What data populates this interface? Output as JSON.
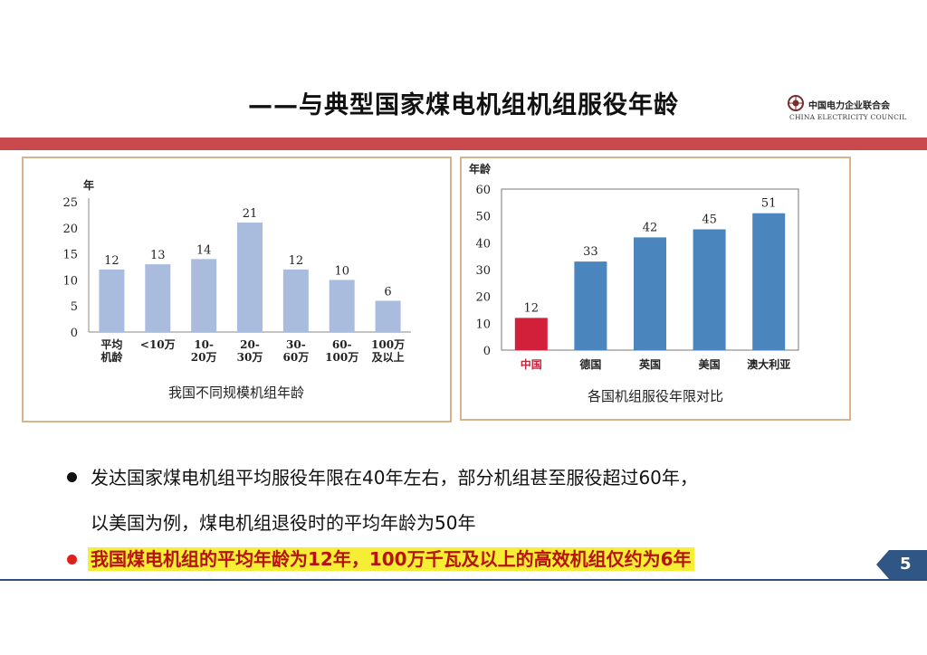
{
  "header": {
    "title": "——与典型国家煤电机组机组服役年龄",
    "logo_cn": "中国电力企业联合会",
    "logo_en": "CHINA ELECTRICITY COUNCIL"
  },
  "chart_data": [
    {
      "type": "bar",
      "title": "我国不同规模机组年龄",
      "ylabel": "年",
      "ylim": [
        0,
        25
      ],
      "yticks": [
        0,
        5,
        10,
        15,
        20,
        25
      ],
      "categories": [
        [
          "平均",
          "机龄"
        ],
        [
          "<10万"
        ],
        [
          "10-",
          "20万"
        ],
        [
          "20-",
          "30万"
        ],
        [
          "30-",
          "60万"
        ],
        [
          "60-",
          "100万"
        ],
        [
          "100万",
          "及以上"
        ]
      ],
      "values": [
        12,
        13,
        14,
        21,
        12,
        10,
        6
      ],
      "data_labels": [
        "12",
        "13",
        "14",
        "21",
        "12",
        "10",
        "6"
      ],
      "grid": false,
      "colors": {
        "bar": "#a9bcdd"
      }
    },
    {
      "type": "bar",
      "title": "各国机组服役年限对比",
      "ylabel": "年龄",
      "ylim": [
        0,
        60
      ],
      "yticks": [
        0,
        10,
        20,
        30,
        40,
        50,
        60
      ],
      "categories": [
        "中国",
        "德国",
        "英国",
        "美国",
        "澳大利亚"
      ],
      "values": [
        12,
        33,
        42,
        45,
        51
      ],
      "data_labels": [
        "12",
        "33",
        "42",
        "45",
        "51"
      ],
      "grid": false,
      "colors": {
        "bar": "#4a86bd",
        "highlight": "#d3203a",
        "highlight_label": "#d3203a"
      }
    }
  ],
  "bullets": [
    {
      "lines": [
        "发达国家煤电机组平均服役年限在40年左右，部分机组甚至服役超过60年，",
        "以美国为例，煤电机组退役时的平均年龄为50年"
      ],
      "dot_color": "#111111"
    },
    {
      "lines": [
        "我国煤电机组的平均年龄为12年，100万千瓦及以上的高效机组仅约为6年"
      ],
      "dot_color": "#e0201b",
      "highlight": true
    }
  ],
  "footer": {
    "page_number": "5"
  }
}
